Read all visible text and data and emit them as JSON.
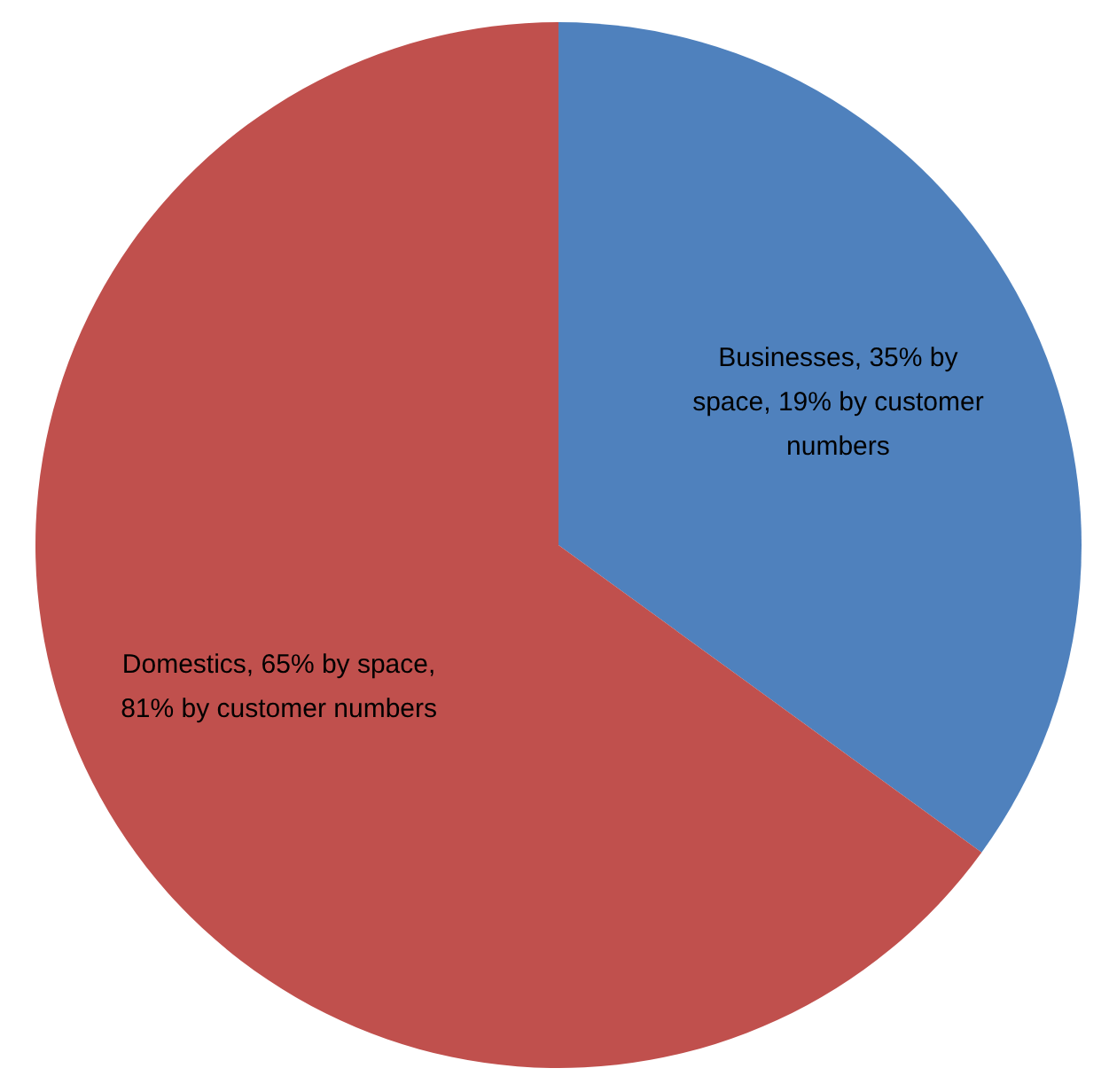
{
  "chart_data": {
    "type": "pie",
    "categories": [
      "Businesses, 35% by space, 19% by customer numbers",
      "Domestics, 65% by space, 81% by customer numbers"
    ],
    "values": [
      35,
      65
    ],
    "colors": [
      "#4f81bd",
      "#c0504d"
    ],
    "legend": false
  }
}
